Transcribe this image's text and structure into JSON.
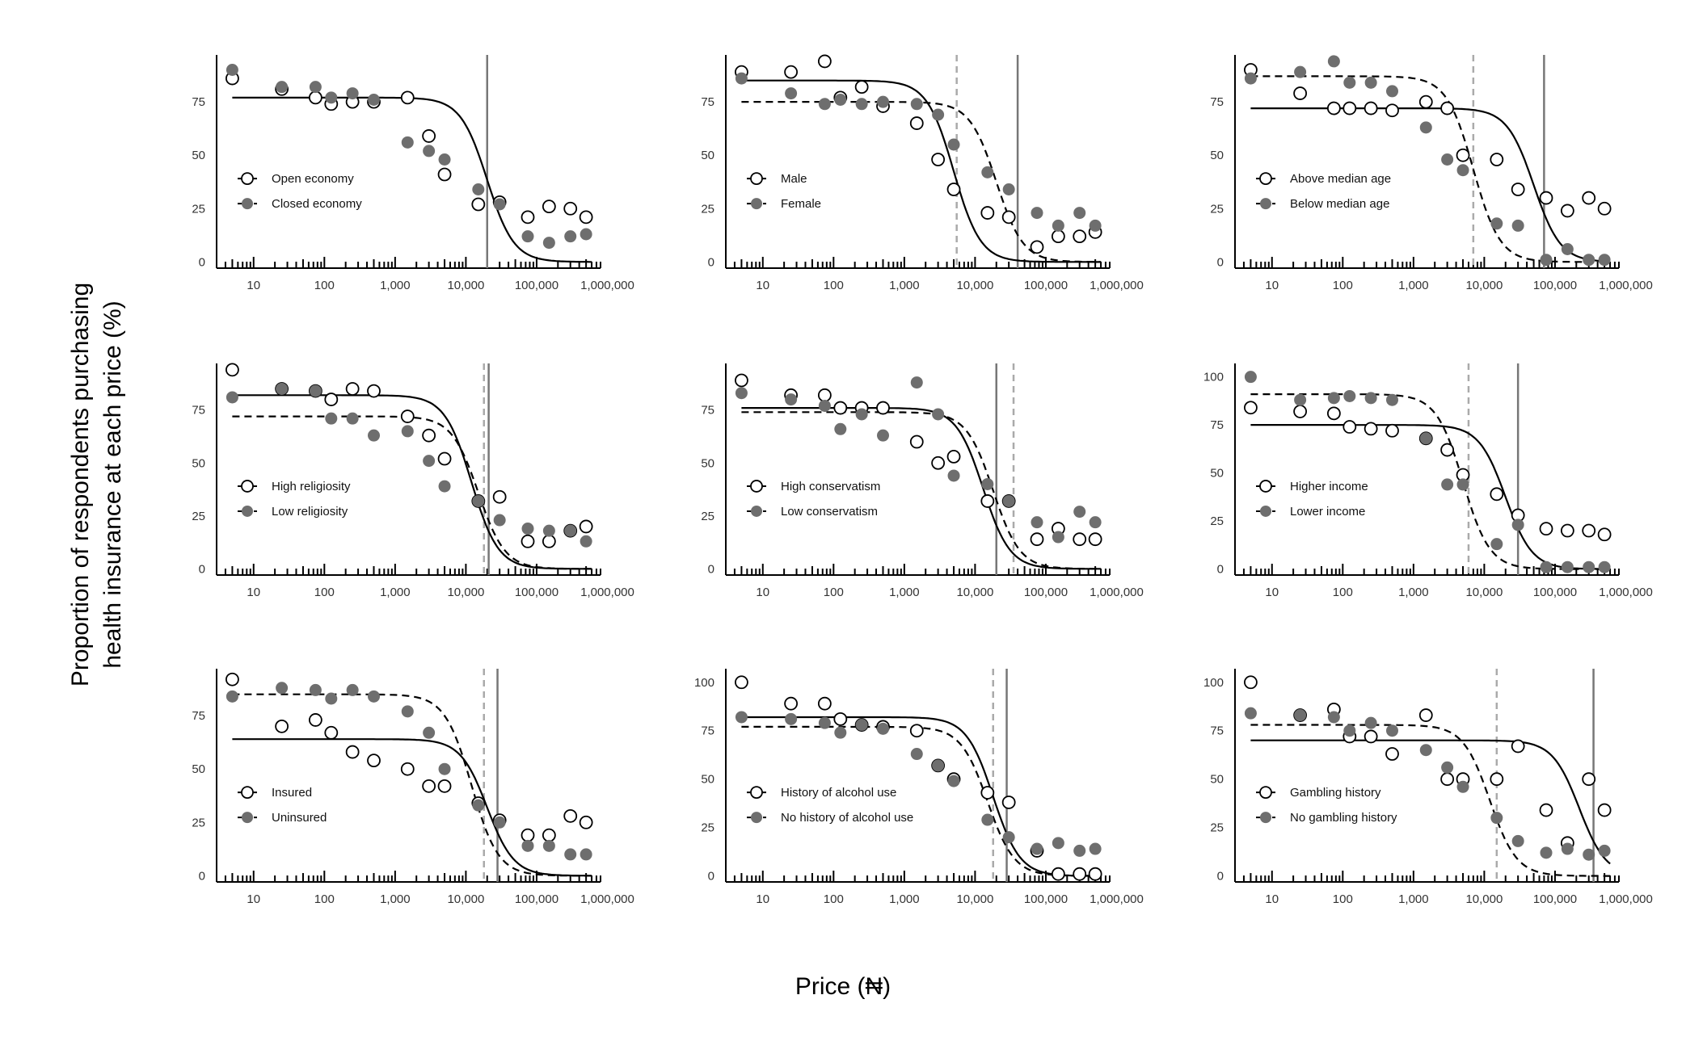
{
  "figure": {
    "ylabel_line1": "Proportion of respondents purchasing",
    "ylabel_line2": "health insurance at each price (%)",
    "xlabel": "Price (₦)"
  },
  "chart_data": [
    {
      "type": "scatter",
      "panel": "economy",
      "x_scale": "log",
      "xticks": [
        "10",
        "100",
        "1,000",
        "10,000",
        "100,000",
        "1,000,000"
      ],
      "yticks": [
        "0",
        "25",
        "50",
        "75"
      ],
      "ylim": [
        0,
        95
      ],
      "x": [
        5,
        25,
        75,
        125,
        250,
        500,
        1500,
        3000,
        5000,
        15000,
        30000,
        75000,
        150000,
        300000,
        500000
      ],
      "series": [
        {
          "name": "Open economy",
          "marker": "open",
          "line": "solid",
          "values": [
            86,
            81,
            77,
            74,
            75,
            75,
            77,
            59,
            41,
            27,
            28,
            21,
            26,
            25,
            21
          ],
          "fit": {
            "top": 77,
            "mid": 20000
          }
        },
        {
          "name": "Closed economy",
          "marker": "filled",
          "line": "dashed",
          "values": [
            90,
            82,
            82,
            77,
            79,
            76,
            56,
            52,
            48,
            34,
            27,
            12,
            9,
            12,
            13
          ]
        }
      ],
      "vlines": [
        {
          "x": 20000,
          "style": "solid"
        }
      ]
    },
    {
      "type": "scatter",
      "panel": "sex",
      "x_scale": "log",
      "xticks": [
        "10",
        "100",
        "1,000",
        "10,000",
        "100,000",
        "1,000,000"
      ],
      "yticks": [
        "0",
        "25",
        "50",
        "75"
      ],
      "ylim": [
        0,
        95
      ],
      "x": [
        5,
        25,
        75,
        125,
        250,
        500,
        1500,
        3000,
        5000,
        15000,
        30000,
        75000,
        150000,
        300000,
        500000
      ],
      "series": [
        {
          "name": "Male",
          "marker": "open",
          "line": "solid",
          "values": [
            89,
            89,
            94,
            77,
            82,
            73,
            65,
            48,
            34,
            23,
            21,
            7,
            12,
            12,
            14
          ],
          "fit": {
            "top": 85,
            "mid": 5000
          }
        },
        {
          "name": "Female",
          "marker": "filled",
          "line": "dashed",
          "values": [
            86,
            79,
            74,
            76,
            74,
            75,
            74,
            69,
            55,
            42,
            34,
            23,
            17,
            23,
            17
          ],
          "fit": {
            "top": 75,
            "mid": 20000
          }
        }
      ],
      "vlines": [
        {
          "x": 5500,
          "style": "dashed"
        },
        {
          "x": 40000,
          "style": "solid"
        }
      ]
    },
    {
      "type": "scatter",
      "panel": "age",
      "x_scale": "log",
      "xticks": [
        "10",
        "100",
        "1,000",
        "10,000",
        "100,000",
        "1,000,000"
      ],
      "yticks": [
        "0",
        "25",
        "50",
        "75"
      ],
      "ylim": [
        0,
        95
      ],
      "x": [
        5,
        25,
        75,
        125,
        250,
        500,
        1500,
        3000,
        5000,
        15000,
        30000,
        75000,
        150000,
        300000,
        500000
      ],
      "series": [
        {
          "name": "Above median age",
          "marker": "open",
          "line": "solid",
          "values": [
            90,
            79,
            72,
            72,
            72,
            71,
            75,
            72,
            50,
            48,
            34,
            30,
            24,
            30,
            25
          ],
          "fit": {
            "top": 72,
            "mid": 50000
          }
        },
        {
          "name": "Below median age",
          "marker": "filled",
          "line": "dashed",
          "values": [
            86,
            89,
            94,
            84,
            84,
            80,
            63,
            48,
            43,
            18,
            17,
            1,
            6,
            1,
            1
          ],
          "fit": {
            "top": 87,
            "mid": 7000
          }
        }
      ],
      "vlines": [
        {
          "x": 7000,
          "style": "dashed"
        },
        {
          "x": 70000,
          "style": "solid"
        }
      ]
    },
    {
      "type": "scatter",
      "panel": "religiosity",
      "x_scale": "log",
      "xticks": [
        "10",
        "100",
        "1,000",
        "10,000",
        "100,000",
        "1,000,000"
      ],
      "yticks": [
        "0",
        "25",
        "50",
        "75"
      ],
      "ylim": [
        0,
        95
      ],
      "x": [
        5,
        25,
        75,
        125,
        250,
        500,
        1500,
        3000,
        5000,
        15000,
        30000,
        75000,
        150000,
        300000,
        500000
      ],
      "series": [
        {
          "name": "High religiosity",
          "marker": "open",
          "line": "solid",
          "values": [
            94,
            85,
            84,
            80,
            85,
            84,
            72,
            63,
            52,
            32,
            34,
            13,
            13,
            18,
            20
          ],
          "fit": {
            "top": 82,
            "mid": 12000
          }
        },
        {
          "name": "Low religiosity",
          "marker": "filled",
          "line": "dashed",
          "values": [
            81,
            85,
            84,
            71,
            71,
            63,
            65,
            51,
            39,
            32,
            23,
            19,
            18,
            18,
            13
          ],
          "fit": {
            "top": 72,
            "mid": 15000
          }
        }
      ],
      "vlines": [
        {
          "x": 18000,
          "style": "dashed"
        },
        {
          "x": 21000,
          "style": "solid"
        }
      ]
    },
    {
      "type": "scatter",
      "panel": "conservatism",
      "x_scale": "log",
      "xticks": [
        "10",
        "100",
        "1,000",
        "10,000",
        "100,000",
        "1,000,000"
      ],
      "yticks": [
        "0",
        "25",
        "50",
        "75"
      ],
      "ylim": [
        0,
        95
      ],
      "x": [
        5,
        25,
        75,
        125,
        250,
        500,
        1500,
        3000,
        5000,
        15000,
        30000,
        75000,
        150000,
        300000,
        500000
      ],
      "series": [
        {
          "name": "High conservatism",
          "marker": "open",
          "line": "solid",
          "values": [
            89,
            82,
            82,
            76,
            76,
            76,
            60,
            50,
            53,
            32,
            32,
            14,
            19,
            14,
            14
          ],
          "fit": {
            "top": 76,
            "mid": 13000
          }
        },
        {
          "name": "Low conservatism",
          "marker": "filled",
          "line": "dashed",
          "values": [
            83,
            80,
            77,
            66,
            73,
            63,
            88,
            73,
            44,
            40,
            32,
            22,
            15,
            27,
            22
          ],
          "fit": {
            "top": 74,
            "mid": 18000
          }
        }
      ],
      "vlines": [
        {
          "x": 20000,
          "style": "solid"
        },
        {
          "x": 35000,
          "style": "dashed"
        }
      ]
    },
    {
      "type": "scatter",
      "panel": "income",
      "x_scale": "log",
      "xticks": [
        "10",
        "100",
        "1,000",
        "10,000",
        "100,000",
        "1,000,000"
      ],
      "yticks": [
        "0",
        "25",
        "50",
        "75",
        "100"
      ],
      "ylim": [
        0,
        105
      ],
      "x": [
        5,
        25,
        75,
        125,
        250,
        500,
        1500,
        3000,
        5000,
        15000,
        30000,
        75000,
        150000,
        300000,
        500000
      ],
      "series": [
        {
          "name": "Higher income",
          "marker": "open",
          "line": "solid",
          "values": [
            84,
            82,
            81,
            74,
            73,
            72,
            68,
            62,
            49,
            39,
            28,
            21,
            20,
            20,
            18
          ],
          "fit": {
            "top": 75,
            "mid": 20000
          }
        },
        {
          "name": "Lower income",
          "marker": "filled",
          "line": "dashed",
          "values": [
            100,
            88,
            89,
            90,
            89,
            88,
            68,
            44,
            44,
            13,
            23,
            1,
            1,
            1,
            1
          ],
          "fit": {
            "top": 91,
            "mid": 5000
          }
        }
      ],
      "vlines": [
        {
          "x": 6000,
          "style": "dashed"
        },
        {
          "x": 30000,
          "style": "solid"
        }
      ]
    },
    {
      "type": "scatter",
      "panel": "insurance",
      "x_scale": "log",
      "xticks": [
        "10",
        "100",
        "1,000",
        "10,000",
        "100,000",
        "1,000,000"
      ],
      "yticks": [
        "0",
        "25",
        "50",
        "75"
      ],
      "ylim": [
        0,
        95
      ],
      "x": [
        5,
        25,
        75,
        125,
        250,
        500,
        1500,
        3000,
        5000,
        15000,
        30000,
        75000,
        150000,
        300000,
        500000
      ],
      "series": [
        {
          "name": "Insured",
          "marker": "open",
          "line": "solid",
          "values": [
            92,
            70,
            73,
            67,
            58,
            54,
            50,
            42,
            42,
            34,
            26,
            19,
            19,
            28,
            25
          ],
          "fit": {
            "top": 64,
            "mid": 20000
          }
        },
        {
          "name": "Uninsured",
          "marker": "filled",
          "line": "dashed",
          "values": [
            84,
            88,
            87,
            83,
            87,
            84,
            77,
            67,
            50,
            33,
            25,
            14,
            14,
            10,
            10
          ],
          "fit": {
            "top": 85,
            "mid": 12000
          }
        }
      ],
      "vlines": [
        {
          "x": 18000,
          "style": "dashed"
        },
        {
          "x": 28000,
          "style": "solid"
        }
      ]
    },
    {
      "type": "scatter",
      "panel": "alcohol",
      "x_scale": "log",
      "xticks": [
        "10",
        "100",
        "1,000",
        "10,000",
        "100,000",
        "1,000,000"
      ],
      "yticks": [
        "0",
        "25",
        "50",
        "75",
        "100"
      ],
      "ylim": [
        0,
        105
      ],
      "x": [
        5,
        25,
        75,
        125,
        250,
        500,
        1500,
        3000,
        5000,
        15000,
        30000,
        75000,
        150000,
        300000,
        500000
      ],
      "series": [
        {
          "name": "History of alcohol use",
          "marker": "open",
          "line": "solid",
          "values": [
            100,
            89,
            89,
            81,
            78,
            77,
            75,
            57,
            50,
            43,
            38,
            13,
            1,
            1,
            1
          ],
          "fit": {
            "top": 82,
            "mid": 18000
          }
        },
        {
          "name": "No history of alcohol use",
          "marker": "filled",
          "line": "dashed",
          "values": [
            82,
            81,
            79,
            74,
            78,
            76,
            63,
            57,
            49,
            29,
            20,
            14,
            17,
            13,
            14
          ],
          "fit": {
            "top": 77,
            "mid": 15000
          }
        }
      ],
      "vlines": [
        {
          "x": 18000,
          "style": "dashed"
        },
        {
          "x": 28000,
          "style": "solid"
        }
      ]
    },
    {
      "type": "scatter",
      "panel": "gambling",
      "x_scale": "log",
      "xticks": [
        "10",
        "100",
        "1,000",
        "10,000",
        "100,000",
        "1,000,000"
      ],
      "yticks": [
        "0",
        "25",
        "50",
        "75",
        "100"
      ],
      "ylim": [
        0,
        105
      ],
      "x": [
        5,
        25,
        75,
        125,
        250,
        500,
        1500,
        3000,
        5000,
        15000,
        30000,
        75000,
        150000,
        300000,
        500000
      ],
      "series": [
        {
          "name": "Gambling history",
          "marker": "open",
          "line": "solid",
          "values": [
            100,
            83,
            86,
            72,
            72,
            63,
            83,
            50,
            50,
            50,
            67,
            34,
            17,
            50,
            34
          ],
          "fit": {
            "top": 70,
            "mid": 220000
          }
        },
        {
          "name": "No gambling history",
          "marker": "filled",
          "line": "dashed",
          "values": [
            84,
            83,
            82,
            75,
            79,
            75,
            65,
            56,
            46,
            30,
            18,
            12,
            14,
            11,
            13
          ],
          "fit": {
            "top": 78,
            "mid": 12000
          }
        }
      ],
      "vlines": [
        {
          "x": 15000,
          "style": "dashed"
        },
        {
          "x": 350000,
          "style": "solid"
        }
      ]
    }
  ]
}
